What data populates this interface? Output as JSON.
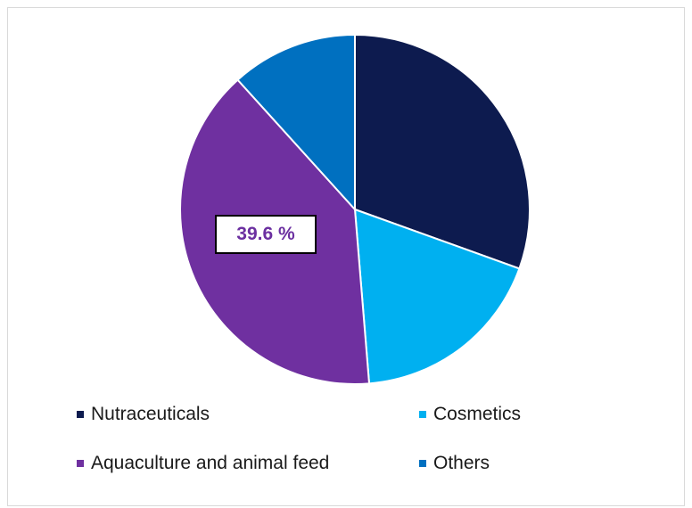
{
  "chart_data": {
    "type": "pie",
    "slices": [
      {
        "name": "Nutraceuticals",
        "value": 30.5,
        "color": "#0d1b4f"
      },
      {
        "name": "Cosmetics",
        "value": 18.2,
        "color": "#00b0f0"
      },
      {
        "name": "Aquaculture and animal feed",
        "value": 39.6,
        "color": "#6f30a0"
      },
      {
        "name": "Others",
        "value": 11.7,
        "color": "#0070c0"
      }
    ],
    "data_label": {
      "slice": "Aquaculture and animal feed",
      "text": "39.6 %"
    },
    "legend_position": "bottom",
    "title": ""
  }
}
